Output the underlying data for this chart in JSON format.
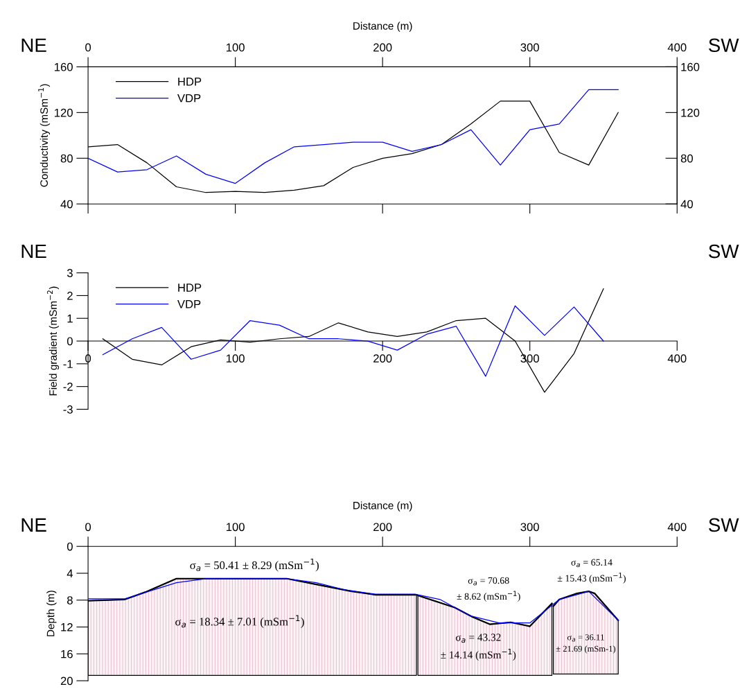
{
  "chart_data": [
    {
      "type": "line",
      "ylabel": "Conductivity (mSm$^{−1}$)",
      "x2label": "Distance (m)",
      "legend": "top left",
      "annotations": [
        "NE",
        "SW"
      ],
      "xlim": [
        0,
        400
      ],
      "xticks": [
        0,
        100,
        200,
        300,
        400
      ],
      "ylim": [
        40,
        160
      ],
      "yticks": [
        40,
        80,
        120,
        160
      ],
      "y2lim": [
        40,
        160
      ],
      "y2ticks": [
        40,
        80,
        120,
        160
      ],
      "x": [
        0,
        20,
        40,
        60,
        80,
        100,
        120,
        140,
        160,
        180,
        200,
        220,
        240,
        260,
        280,
        300,
        320,
        340,
        360
      ],
      "series": [
        {
          "name": "HDP",
          "color": "#000000",
          "values": [
            90,
            92,
            76,
            55,
            50,
            51,
            50,
            52,
            56,
            72,
            80,
            84,
            92,
            110,
            130,
            130,
            85,
            74,
            120
          ]
        },
        {
          "name": "VDP",
          "color": "#0000ff",
          "values": [
            80,
            68,
            70,
            82,
            66,
            58,
            76,
            90,
            92,
            94,
            94,
            86,
            92,
            105,
            74,
            105,
            110,
            140,
            140
          ]
        }
      ]
    },
    {
      "type": "line",
      "ylabel": "Field gradient (mSm$^{−2}$)",
      "legend": "top left",
      "annotations": [
        "NE",
        "SW"
      ],
      "xlim": [
        0,
        400
      ],
      "xticks": [
        0,
        100,
        200,
        300,
        400
      ],
      "ylim": [
        -3,
        3
      ],
      "yticks": [
        -3,
        -2,
        -1,
        0,
        1,
        2,
        3
      ],
      "x": [
        10,
        30,
        50,
        70,
        90,
        110,
        130,
        150,
        170,
        190,
        210,
        230,
        250,
        270,
        290,
        310,
        330,
        350
      ],
      "series": [
        {
          "name": "HDP",
          "color": "#000000",
          "values": [
            0.1,
            -0.8,
            -1.05,
            -0.25,
            0.05,
            -0.05,
            0.1,
            0.2,
            0.8,
            0.4,
            0.2,
            0.4,
            0.9,
            1.0,
            0.0,
            -2.25,
            -0.55,
            2.3
          ]
        },
        {
          "name": "VDP",
          "color": "#0000ff",
          "values": [
            -0.6,
            0.1,
            0.6,
            -0.8,
            -0.4,
            0.9,
            0.7,
            0.1,
            0.1,
            0.0,
            -0.4,
            0.3,
            0.65,
            -1.55,
            1.55,
            0.25,
            1.5,
            0.0
          ]
        }
      ]
    },
    {
      "type": "line",
      "ylabel": "Depth (m)",
      "x2label": "Distance (m)",
      "annotations": [
        "NE",
        "SW",
        "σ$_{a}$ = 50.41 ± 8.29 (mSm$^{−1}$)",
        "σ$_{a}$ = 18.34 ± 7.01 (mSm$^{−1}$)",
        "σ$_{a}$ = 70.68\n± 8.62 (mSm$^{−1}$)",
        "σ$_{a}$ = 43.32\n± 14.14 (mSm$^{−1}$)",
        "σ$_{a}$ = 65.14\n± 15.43 (mSm$^{−1}$)",
        "σ$_{a}$ = 36.11\n± 21.69 (mSm-1)"
      ],
      "xlim": [
        0,
        400
      ],
      "xticks": [
        0,
        100,
        200,
        300,
        400
      ],
      "ylim": [
        20,
        0
      ],
      "yticks": [
        0,
        4,
        8,
        12,
        16,
        20
      ],
      "series": [
        {
          "color": "#000000",
          "x": [
            0,
            25,
            39,
            60,
            135,
            158,
            179,
            195,
            223
          ],
          "values": [
            8.1,
            7.9,
            6.8,
            4.8,
            4.8,
            5.8,
            6.7,
            7.2,
            7.2
          ],
          "lower": [
            19.2,
            19.2,
            19.2,
            19.2,
            19.2,
            19.2,
            19.2,
            19.2,
            19.2
          ],
          "upper": [
            8.1,
            7.9,
            6.8,
            4.8,
            4.8,
            5.8,
            6.7,
            7.2,
            7.2
          ]
        },
        {
          "color": "#000000",
          "x": [
            224,
            249,
            261,
            273,
            287,
            300,
            315
          ],
          "values": [
            7.3,
            9.1,
            10.5,
            11.6,
            11.3,
            11.9,
            8.5
          ],
          "lower": [
            19.2,
            19.2,
            19.2,
            19.2,
            19.2,
            19.2,
            19.2
          ],
          "upper": [
            7.3,
            9.1,
            10.5,
            11.6,
            11.3,
            11.9,
            8.5
          ]
        },
        {
          "color": "#000000",
          "x": [
            316,
            320,
            332,
            340,
            344,
            360
          ],
          "values": [
            8.9,
            7.9,
            7.0,
            6.7,
            7.0,
            11.0
          ],
          "lower": [
            19.0,
            19.0,
            19.0,
            19.0,
            19.0,
            19.0
          ],
          "upper": [
            8.9,
            7.9,
            7.0,
            6.7,
            7.0,
            11.0
          ]
        },
        {
          "color": "#0000ff",
          "x": [
            0,
            25,
            60,
            80,
            135,
            155,
            175,
            195,
            222,
            239,
            259,
            279,
            300,
            320,
            340,
            360
          ],
          "values": [
            7.8,
            7.8,
            5.4,
            4.8,
            4.8,
            5.4,
            6.5,
            7.1,
            7.1,
            7.9,
            10.3,
            11.4,
            11.4,
            7.9,
            6.7,
            11.0
          ]
        }
      ]
    }
  ]
}
